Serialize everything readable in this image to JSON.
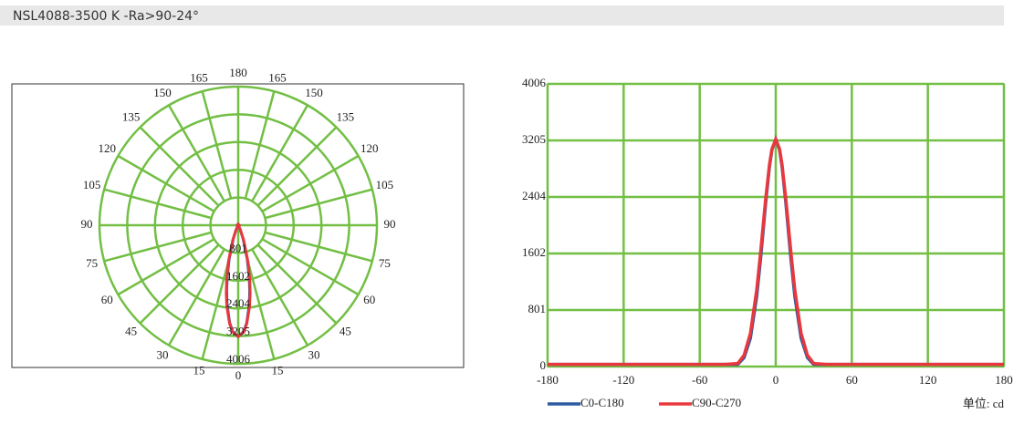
{
  "header": {
    "title": "NSL4088-3500 K -Ra>90-24°"
  },
  "chart_data": [
    {
      "type": "polar",
      "angle_ticks": [
        0,
        15,
        30,
        45,
        60,
        75,
        90,
        105,
        120,
        135,
        150,
        165,
        180
      ],
      "rlim": [
        0,
        4006
      ],
      "rticks": [
        801,
        1602,
        2404,
        3205,
        4006
      ],
      "grid_color": "#72bf44",
      "x": [
        -180,
        -90,
        -40,
        -30,
        -25,
        -20,
        -15,
        -12,
        -10,
        -8,
        -5,
        -3,
        0,
        3,
        5,
        8,
        10,
        12,
        15,
        20,
        25,
        30,
        40,
        90,
        180
      ],
      "series": [
        {
          "name": "C0-C180",
          "color": "#2c5aa0",
          "values": [
            30,
            30,
            30,
            30,
            126,
            402,
            999,
            1520,
            1912,
            2309,
            2828,
            3072,
            3220,
            3072,
            2828,
            2309,
            1912,
            1520,
            999,
            402,
            126,
            30,
            30,
            30,
            30
          ]
        },
        {
          "name": "C90-C270",
          "color": "#e8383d",
          "values": [
            30,
            30,
            30,
            43,
            160,
            471,
            1091,
            1611,
            1991,
            2367,
            2856,
            3084,
            3220,
            3084,
            2856,
            2367,
            1991,
            1611,
            1091,
            471,
            160,
            43,
            30,
            30,
            30
          ]
        }
      ]
    },
    {
      "type": "line",
      "xlim": [
        -180,
        180
      ],
      "xticks": [
        -180,
        -120,
        -60,
        0,
        60,
        120,
        180
      ],
      "ylim": [
        0,
        4006
      ],
      "yticks": [
        0,
        801,
        1602,
        2404,
        3205,
        4006
      ],
      "grid": true,
      "grid_color": "#72bf44",
      "unit_label": "单位: cd",
      "x": [
        -180,
        -90,
        -40,
        -30,
        -25,
        -20,
        -15,
        -12,
        -10,
        -8,
        -5,
        -3,
        0,
        3,
        5,
        8,
        10,
        12,
        15,
        20,
        25,
        30,
        40,
        90,
        180
      ],
      "series": [
        {
          "name": "C0-C180",
          "color": "#2c5aa0",
          "values": [
            30,
            30,
            30,
            30,
            126,
            402,
            999,
            1520,
            1912,
            2309,
            2828,
            3072,
            3220,
            3072,
            2828,
            2309,
            1912,
            1520,
            999,
            402,
            126,
            30,
            30,
            30,
            30
          ]
        },
        {
          "name": "C90-C270",
          "color": "#e8383d",
          "values": [
            30,
            30,
            30,
            43,
            160,
            471,
            1091,
            1611,
            1991,
            2367,
            2856,
            3084,
            3220,
            3084,
            2856,
            2367,
            1991,
            1611,
            1091,
            471,
            160,
            43,
            30,
            30,
            30
          ]
        }
      ]
    }
  ]
}
